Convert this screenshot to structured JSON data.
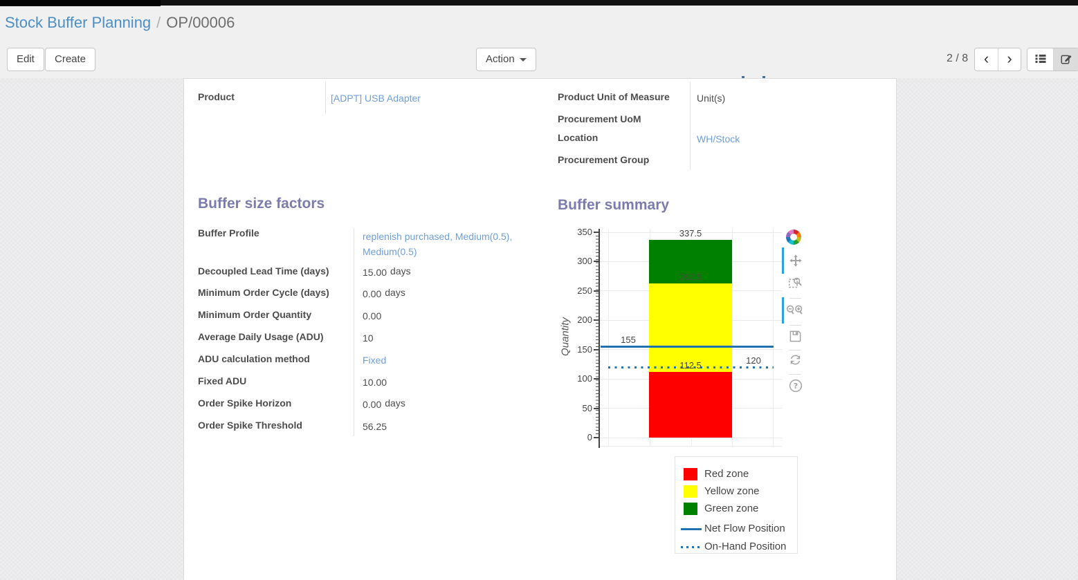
{
  "breadcrumb": {
    "parent": "Stock Buffer Planning",
    "separator": "/",
    "current": "OP/00006"
  },
  "toolbar": {
    "edit_label": "Edit",
    "create_label": "Create",
    "action_label": "Action",
    "pager": "2 / 8",
    "prev_label": "‹",
    "next_label": "›"
  },
  "record": {
    "fields_left": [
      {
        "label": "Product",
        "value": "[ADPT] USB Adapter",
        "link": true
      }
    ],
    "fields_right": [
      {
        "label": "Product Unit of Measure",
        "value": "Unit(s)",
        "link": false
      },
      {
        "label": "Procurement UoM",
        "value": "",
        "link": false
      },
      {
        "label": "Location",
        "value": "WH/Stock",
        "link": true
      },
      {
        "label": "Procurement Group",
        "value": "",
        "link": false
      }
    ]
  },
  "sections": {
    "factors_title": "Buffer size factors",
    "summary_title": "Buffer summary"
  },
  "factors": {
    "rows": [
      {
        "label": "Buffer Profile",
        "value": "replenish purchased, Medium(0.5), Medium(0.5)",
        "link": true,
        "wrap": true
      },
      {
        "label": "Decoupled Lead Time (days)",
        "value": "15.00",
        "suffix": "days"
      },
      {
        "label": "Minimum Order Cycle (days)",
        "value": "0.00",
        "suffix": "days"
      },
      {
        "label": "Minimum Order Quantity",
        "value": "0.00"
      },
      {
        "label": "Average Daily Usage (ADU)",
        "value": "10"
      },
      {
        "label": "ADU calculation method",
        "value": "Fixed",
        "link": true
      },
      {
        "label": "Fixed ADU",
        "value": "10.00"
      },
      {
        "label": "Order Spike Horizon",
        "value": "0.00",
        "suffix": "days"
      },
      {
        "label": "Order Spike Threshold",
        "value": "56.25"
      }
    ]
  },
  "chart_data": {
    "type": "bar",
    "title": "Buffer summary",
    "xlabel": "",
    "ylabel": "Quantity",
    "ylim": [
      0,
      350
    ],
    "ytick_step": 50,
    "grid": true,
    "legend_position": "bottom-right",
    "zones": [
      {
        "name": "Red zone",
        "color": "#ff0000",
        "from": 0,
        "to": 112.5
      },
      {
        "name": "Yellow zone",
        "color": "#ffff00",
        "from": 112.5,
        "to": 262.5
      },
      {
        "name": "Green zone",
        "color": "#008000",
        "from": 262.5,
        "to": 337.5
      }
    ],
    "lines": [
      {
        "name": "Net Flow Position",
        "color": "#2272b2",
        "style": "solid",
        "value": 155
      },
      {
        "name": "On-Hand Position",
        "color": "#2272b2",
        "style": "dotted",
        "value": 120
      }
    ],
    "annotations": [
      {
        "text": "337.5",
        "value": 337.5,
        "anchor": "bar"
      },
      {
        "text": "262.5",
        "value": 262.5,
        "anchor": "bar",
        "color": "#455138"
      },
      {
        "text": "155",
        "value": 155,
        "anchor": "left"
      },
      {
        "text": "112.5",
        "value": 112.5,
        "anchor": "bar"
      },
      {
        "text": "120",
        "value": 120,
        "anchor": "right"
      }
    ],
    "legend_items": [
      {
        "label": "Red zone",
        "swatch": "square",
        "color": "#ff0000"
      },
      {
        "label": "Yellow zone",
        "swatch": "square",
        "color": "#ffff00"
      },
      {
        "label": "Green zone",
        "swatch": "square",
        "color": "#008000"
      },
      {
        "label": "Net Flow Position",
        "swatch": "line",
        "color": "#2272b2"
      },
      {
        "label": "On-Hand Position",
        "swatch": "dotted",
        "color": "#2272b2"
      }
    ],
    "modebar_icons": [
      "plotly-logo",
      "pan",
      "box-zoom",
      "zoom-in-out",
      "save",
      "reset-axes",
      "help"
    ]
  }
}
